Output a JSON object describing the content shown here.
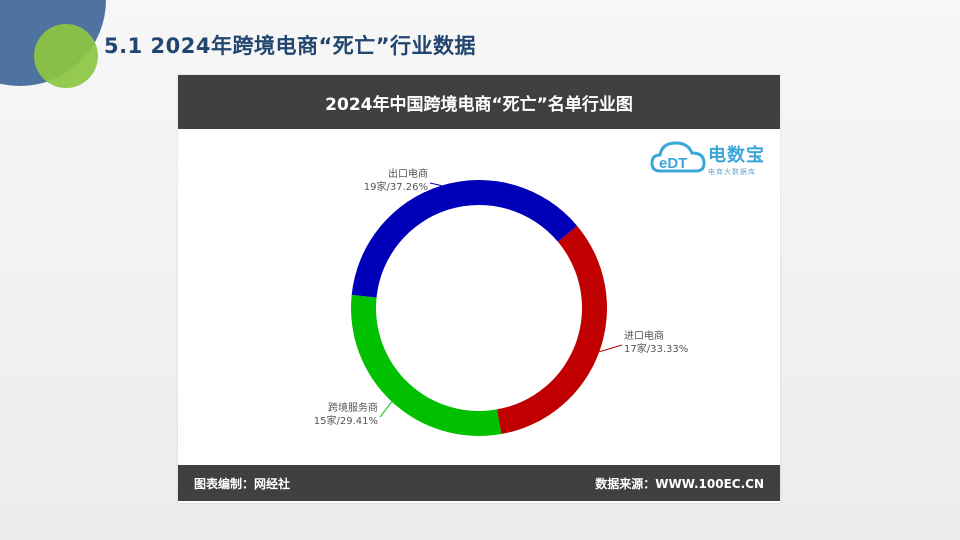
{
  "slide": {
    "title": "5.1 2024年跨境电商“死亡”行业数据"
  },
  "logo": {
    "name": "电数宝",
    "sub": "电商大数据库",
    "icon": "cloud-edt-logo"
  },
  "footer": {
    "left": "图表编制：网经社",
    "right": "数据来源：WWW.100EC.CN"
  },
  "colors": {
    "title": "#22466f",
    "header_bg": "#404040",
    "deco_blue": "#4f73a0",
    "deco_green": "#8cc641"
  },
  "chart_data": {
    "type": "pie",
    "donut": true,
    "title": "2024年中国跨境电商“死亡”名单行业图",
    "unit": "家",
    "slices": [
      {
        "label": "出口电商",
        "count": 19,
        "value_label": "19家/37.26%",
        "percent": 37.26,
        "color": "#0000b8"
      },
      {
        "label": "进口电商",
        "count": 17,
        "value_label": "17家/33.33%",
        "percent": 33.33,
        "color": "#c00000"
      },
      {
        "label": "跨境服务商",
        "count": 15,
        "value_label": "15家/29.41%",
        "percent": 29.41,
        "color": "#00c000"
      }
    ]
  }
}
